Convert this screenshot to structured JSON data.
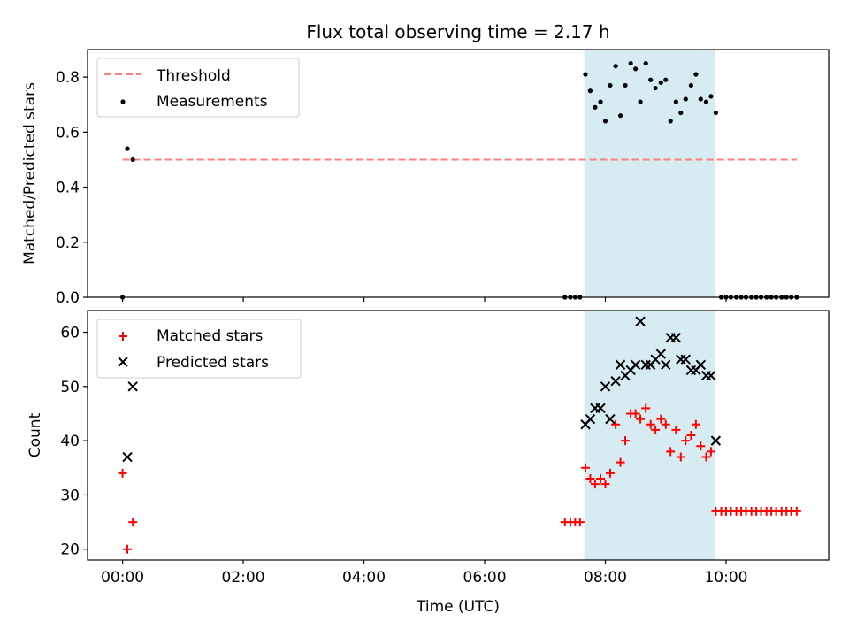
{
  "figure": {
    "title": "Flux total observing time = 2.17 h",
    "xlabel": "Time (UTC)",
    "x_tick_labels": [
      "00:00",
      "02:00",
      "04:00",
      "06:00",
      "08:00",
      "10:00"
    ],
    "x_tick_hours": [
      0,
      2,
      4,
      6,
      8,
      10
    ],
    "xlim_hours": [
      -0.58,
      11.7
    ],
    "shaded_window_hours": [
      7.65,
      9.82
    ],
    "shade_color": "#add8e6",
    "shade_opacity": 0.5
  },
  "chart_data": [
    {
      "type": "scatter",
      "ylabel": "Matched/Predicted stars",
      "ylim": [
        0,
        0.9
      ],
      "y_ticks": [
        0.0,
        0.2,
        0.4,
        0.6,
        0.8
      ],
      "y_tick_labels": [
        "0.0",
        "0.2",
        "0.4",
        "0.6",
        "0.8"
      ],
      "legend_position": "top-left",
      "threshold": {
        "name": "Threshold",
        "value": 0.5,
        "x_start": 0.0,
        "x_end": 11.17,
        "color": "#ff7f7f",
        "style": "dashed"
      },
      "series": [
        {
          "name": "Measurements",
          "color": "#000000",
          "marker": "dot",
          "x": [
            0.0,
            0.08,
            0.17,
            7.33,
            7.42,
            7.5,
            7.58,
            7.67,
            7.75,
            7.83,
            7.92,
            8.0,
            8.08,
            8.17,
            8.25,
            8.33,
            8.42,
            8.5,
            8.58,
            8.67,
            8.75,
            8.83,
            8.92,
            9.0,
            9.08,
            9.17,
            9.25,
            9.33,
            9.42,
            9.5,
            9.58,
            9.67,
            9.75,
            9.83,
            9.92,
            10.0,
            10.08,
            10.17,
            10.25,
            10.33,
            10.42,
            10.5,
            10.58,
            10.67,
            10.75,
            10.83,
            10.92,
            11.0,
            11.08,
            11.17
          ],
          "y": [
            0.0,
            0.54,
            0.5,
            0.0,
            0.0,
            0.0,
            0.0,
            0.81,
            0.75,
            0.69,
            0.71,
            0.64,
            0.77,
            0.84,
            0.66,
            0.77,
            0.85,
            0.83,
            0.71,
            0.85,
            0.79,
            0.76,
            0.78,
            0.79,
            0.64,
            0.71,
            0.67,
            0.72,
            0.77,
            0.81,
            0.72,
            0.71,
            0.73,
            0.67,
            0.0,
            0.0,
            0.0,
            0.0,
            0.0,
            0.0,
            0.0,
            0.0,
            0.0,
            0.0,
            0.0,
            0.0,
            0.0,
            0.0,
            0.0,
            0.0
          ]
        }
      ]
    },
    {
      "type": "scatter",
      "ylabel": "Count",
      "ylim": [
        18,
        64
      ],
      "y_ticks": [
        20,
        30,
        40,
        50,
        60
      ],
      "y_tick_labels": [
        "20",
        "30",
        "40",
        "50",
        "60"
      ],
      "legend_position": "top-left",
      "series": [
        {
          "name": "Matched stars",
          "color": "#ff0000",
          "marker": "plus",
          "x": [
            0.0,
            0.08,
            0.17,
            7.33,
            7.42,
            7.5,
            7.58,
            7.67,
            7.75,
            7.83,
            7.92,
            8.0,
            8.08,
            8.17,
            8.25,
            8.33,
            8.42,
            8.5,
            8.58,
            8.67,
            8.75,
            8.83,
            8.92,
            9.0,
            9.08,
            9.17,
            9.25,
            9.33,
            9.42,
            9.5,
            9.58,
            9.67,
            9.75,
            9.83,
            9.92,
            10.0,
            10.08,
            10.17,
            10.25,
            10.33,
            10.42,
            10.5,
            10.58,
            10.67,
            10.75,
            10.83,
            10.92,
            11.0,
            11.08,
            11.17
          ],
          "y": [
            34,
            20,
            25,
            25,
            25,
            25,
            25,
            35,
            33,
            32,
            33,
            32,
            34,
            43,
            36,
            40,
            45,
            45,
            44,
            46,
            43,
            42,
            44,
            43,
            38,
            42,
            37,
            40,
            41,
            43,
            39,
            37,
            38,
            27,
            27,
            27,
            27,
            27,
            27,
            27,
            27,
            27,
            27,
            27,
            27,
            27,
            27,
            27,
            27,
            27
          ]
        },
        {
          "name": "Predicted stars",
          "color": "#000000",
          "marker": "x",
          "x": [
            0.08,
            0.17,
            7.67,
            7.75,
            7.83,
            7.92,
            8.0,
            8.08,
            8.17,
            8.25,
            8.33,
            8.42,
            8.5,
            8.58,
            8.67,
            8.75,
            8.83,
            8.92,
            9.0,
            9.08,
            9.17,
            9.25,
            9.33,
            9.42,
            9.5,
            9.58,
            9.67,
            9.75,
            9.83
          ],
          "y": [
            37,
            50,
            43,
            44,
            46,
            46,
            50,
            44,
            51,
            54,
            52,
            53,
            54,
            62,
            54,
            54,
            55,
            56,
            54,
            59,
            59,
            55,
            55,
            53,
            53,
            54,
            52,
            52,
            40
          ]
        }
      ]
    }
  ]
}
